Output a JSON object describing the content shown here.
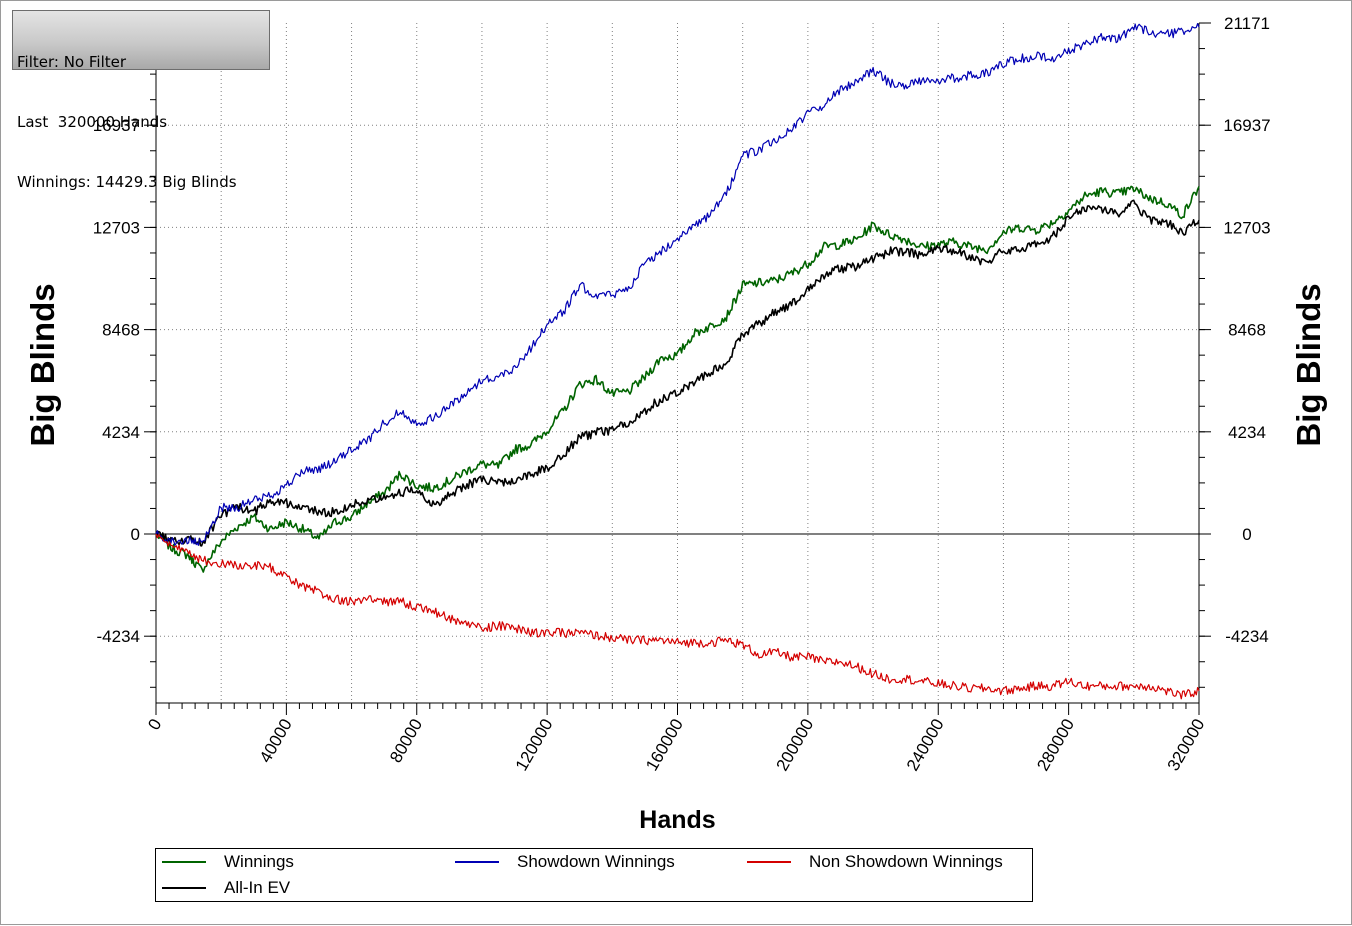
{
  "info_box": {
    "filter_line": "Filter: No Filter",
    "hands_line": "Last  320000 Hands",
    "winnings_line": "Winnings: 14429.3 Big Blinds"
  },
  "colors": {
    "winnings": "#006400",
    "showdown": "#0000b4",
    "non_showdown": "#d40000",
    "allin_ev": "#000000",
    "grid": "#808080"
  },
  "chart_data": {
    "type": "line",
    "xlabel": "Hands",
    "ylabel": "Big Blinds",
    "xlim": [
      0,
      320000
    ],
    "ylim": [
      -6800,
      21171
    ],
    "x_ticks": [
      0,
      40000,
      80000,
      120000,
      160000,
      200000,
      240000,
      280000,
      320000
    ],
    "y_ticks": [
      21171,
      16937,
      12703,
      8468,
      4234,
      0,
      -4234
    ],
    "y_tick_labels": [
      "21171",
      "16937",
      "12703",
      "8468",
      "4234",
      "0",
      "-4234"
    ],
    "x_tick_labels": [
      "0",
      "40000",
      "80000",
      "120000",
      "160000",
      "200000",
      "240000",
      "280000",
      "320000"
    ],
    "grid": true,
    "legend_position": "bottom",
    "x": [
      0,
      5000,
      10000,
      14000,
      20000,
      25000,
      30000,
      35000,
      40000,
      45000,
      50000,
      55000,
      60000,
      65000,
      70000,
      75000,
      80000,
      85000,
      90000,
      95000,
      100000,
      105000,
      110000,
      115000,
      120000,
      125000,
      130000,
      135000,
      140000,
      145000,
      150000,
      155000,
      160000,
      165000,
      170000,
      175000,
      180000,
      185000,
      190000,
      195000,
      200000,
      205000,
      210000,
      215000,
      220000,
      225000,
      230000,
      235000,
      240000,
      245000,
      250000,
      255000,
      260000,
      265000,
      270000,
      275000,
      280000,
      285000,
      290000,
      295000,
      300000,
      305000,
      310000,
      315000,
      320000
    ],
    "series": [
      {
        "name": "Winnings",
        "color_key": "winnings",
        "values": [
          0,
          -600,
          -900,
          -1500,
          -300,
          300,
          700,
          200,
          500,
          200,
          -200,
          500,
          700,
          1300,
          1700,
          2500,
          2000,
          1900,
          2200,
          2600,
          2900,
          2800,
          3500,
          3700,
          4300,
          5100,
          6200,
          6400,
          5800,
          5900,
          6500,
          7300,
          7400,
          8300,
          8600,
          9000,
          10300,
          10400,
          10500,
          10800,
          11200,
          11900,
          12000,
          12200,
          12800,
          12400,
          12200,
          11900,
          12000,
          12100,
          11900,
          11800,
          12500,
          12700,
          12600,
          12900,
          13400,
          14000,
          14200,
          14100,
          14300,
          13900,
          13700,
          13200,
          14400
        ]
      },
      {
        "name": "Showdown Winnings",
        "color_key": "showdown",
        "values": [
          0,
          -300,
          -300,
          -400,
          1100,
          1100,
          1400,
          1600,
          2000,
          2600,
          2700,
          3000,
          3500,
          3900,
          4600,
          5100,
          4600,
          4800,
          5300,
          5800,
          6400,
          6500,
          6900,
          7700,
          8700,
          9200,
          10300,
          9900,
          9900,
          10200,
          11200,
          11700,
          12300,
          12700,
          13200,
          14100,
          15700,
          15900,
          16300,
          16800,
          17400,
          17800,
          18400,
          18800,
          19200,
          18700,
          18600,
          18800,
          18800,
          18900,
          19000,
          19100,
          19500,
          19700,
          19800,
          19700,
          20000,
          20300,
          20600,
          20500,
          21000,
          20800,
          20700,
          20800,
          21000
        ]
      },
      {
        "name": "Non Showdown Winnings",
        "color_key": "non_showdown",
        "values": [
          0,
          -600,
          -700,
          -1100,
          -1200,
          -1300,
          -1300,
          -1400,
          -1800,
          -2200,
          -2400,
          -2700,
          -2800,
          -2700,
          -2800,
          -2800,
          -3000,
          -3200,
          -3500,
          -3700,
          -3900,
          -3800,
          -3900,
          -4100,
          -4100,
          -4100,
          -4100,
          -4200,
          -4300,
          -4400,
          -4400,
          -4400,
          -4500,
          -4500,
          -4500,
          -4400,
          -4600,
          -5000,
          -4900,
          -5100,
          -5100,
          -5300,
          -5300,
          -5500,
          -5800,
          -6000,
          -6000,
          -6100,
          -6200,
          -6300,
          -6400,
          -6400,
          -6500,
          -6400,
          -6300,
          -6300,
          -6100,
          -6300,
          -6300,
          -6300,
          -6300,
          -6300,
          -6500,
          -6700,
          -6500
        ]
      },
      {
        "name": "All-In EV",
        "color_key": "allin_ev",
        "values": [
          0,
          -300,
          -200,
          -400,
          800,
          1100,
          900,
          1400,
          1300,
          1100,
          900,
          900,
          1200,
          1400,
          1600,
          1700,
          1900,
          1200,
          1600,
          2000,
          2300,
          2100,
          2200,
          2500,
          2700,
          3300,
          4000,
          4200,
          4300,
          4600,
          5100,
          5600,
          5900,
          6300,
          6700,
          7100,
          8300,
          8700,
          9200,
          9500,
          10200,
          10700,
          11000,
          11100,
          11400,
          11700,
          11700,
          11500,
          11900,
          11700,
          11500,
          11200,
          11800,
          11800,
          12000,
          12300,
          13100,
          13500,
          13500,
          13200,
          13700,
          13000,
          12900,
          12500,
          13000
        ]
      }
    ]
  },
  "legend": {
    "items": [
      {
        "label": "Winnings",
        "color_key": "winnings"
      },
      {
        "label": "Showdown Winnings",
        "color_key": "showdown"
      },
      {
        "label": "Non Showdown Winnings",
        "color_key": "non_showdown"
      },
      {
        "label": "All-In EV",
        "color_key": "allin_ev"
      }
    ]
  }
}
